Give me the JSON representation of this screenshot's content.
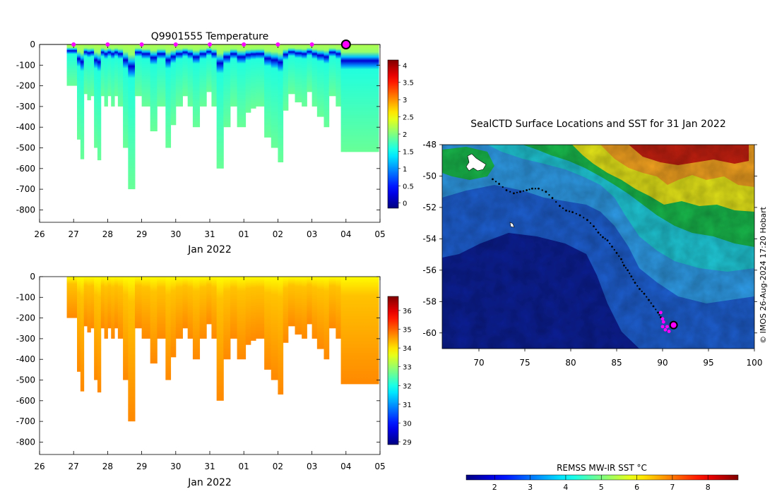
{
  "chart_data": [
    {
      "type": "heatmap",
      "title": "Q9901555  Temperature",
      "xlabel": "Jan 2022",
      "ylabel": "",
      "x_tick_labels": [
        "26",
        "27",
        "28",
        "29",
        "30",
        "31",
        "01",
        "02",
        "03",
        "04",
        "05"
      ],
      "x_range_days": [
        26,
        36
      ],
      "ylim": [
        -860,
        0
      ],
      "y_ticks": [
        0,
        -100,
        -200,
        -300,
        -400,
        -500,
        -600,
        -700,
        -800
      ],
      "colorbar": {
        "min": -0.15,
        "max": 4.15,
        "ticks": [
          0,
          0.5,
          1,
          1.5,
          2,
          2.5,
          3,
          3.5,
          4
        ]
      },
      "surfacing_markers_days": [
        27.0,
        28.0,
        29.0,
        30.0,
        31.0,
        32.0,
        33.0,
        34.0,
        35.0
      ],
      "latest_marker_day": 35.0,
      "profile_start_days": [
        26.8,
        27.1,
        27.2,
        27.3,
        27.4,
        27.5,
        27.6,
        27.7,
        27.8,
        27.9,
        28.0,
        28.1,
        28.2,
        28.3,
        28.45,
        28.6,
        28.8,
        29.0,
        29.25,
        29.45,
        29.7,
        29.85,
        30.0,
        30.2,
        30.35,
        30.5,
        30.7,
        30.9,
        31.05,
        31.2,
        31.4,
        31.6,
        31.8,
        32.05,
        32.2,
        32.35,
        32.6,
        32.8,
        33.0,
        33.15,
        33.3,
        33.5,
        33.7,
        33.85,
        34.0,
        34.15,
        34.35,
        34.5,
        34.7,
        34.85,
        35.0
      ],
      "profile_max_depth_m": [
        200,
        460,
        555,
        240,
        270,
        250,
        500,
        560,
        250,
        300,
        250,
        300,
        250,
        300,
        500,
        700,
        250,
        300,
        420,
        300,
        500,
        390,
        300,
        250,
        300,
        400,
        300,
        230,
        300,
        600,
        400,
        300,
        400,
        330,
        310,
        300,
        450,
        500,
        570,
        320,
        240,
        280,
        300,
        230,
        300,
        350,
        400,
        250,
        300,
        520,
        520
      ],
      "depth_limit_m": 200,
      "surface_temp_c": 2.2,
      "min_temp_c": 0.2,
      "min_temp_depth_m": 130,
      "deep_temp_c": 1.9
    },
    {
      "type": "heatmap",
      "title": "",
      "xlabel": "Jan 2022",
      "ylabel": "",
      "x_tick_labels": [
        "26",
        "27",
        "28",
        "29",
        "30",
        "31",
        "01",
        "02",
        "03",
        "04",
        "05"
      ],
      "x_range_days": [
        26,
        36
      ],
      "ylim": [
        -860,
        0
      ],
      "y_ticks": [
        0,
        -100,
        -200,
        -300,
        -400,
        -500,
        -600,
        -700,
        -800
      ],
      "colorbar": {
        "min": 28.85,
        "max": 36.75,
        "ticks": [
          29,
          30,
          31,
          32,
          33,
          34,
          35,
          36
        ]
      },
      "surface_salinity": 33.8,
      "deep_salinity": 34.7
    },
    {
      "type": "map",
      "title": "SealCTD Surface Locations and SST for 31 Jan 2022",
      "x_range_lon": [
        66,
        100
      ],
      "y_range_lat": [
        -61,
        -48
      ],
      "x_ticks": [
        70,
        75,
        80,
        85,
        90,
        95,
        100
      ],
      "y_ticks": [
        -48,
        -50,
        -52,
        -54,
        -56,
        -58,
        -60
      ],
      "track_lon": [
        71.5,
        72.2,
        73.0,
        73.8,
        74.5,
        75.2,
        75.8,
        76.5,
        77.3,
        78.0,
        78.8,
        79.5,
        80.2,
        81.0,
        81.8,
        82.5,
        83.0,
        83.5,
        84.0,
        84.5,
        85.0,
        85.5,
        85.8,
        86.2,
        86.6,
        87.0,
        87.5,
        88.0,
        88.5,
        89.0,
        89.5,
        89.8
      ],
      "track_lat": [
        -50.2,
        -50.5,
        -50.9,
        -51.1,
        -51.0,
        -50.9,
        -50.8,
        -50.8,
        -51.0,
        -51.4,
        -51.9,
        -52.2,
        -52.3,
        -52.5,
        -52.8,
        -53.2,
        -53.6,
        -53.9,
        -54.1,
        -54.5,
        -54.9,
        -55.3,
        -55.7,
        -56.0,
        -56.4,
        -56.8,
        -57.2,
        -57.5,
        -57.9,
        -58.3,
        -58.7,
        -59.0
      ],
      "recent_lon": [
        89.8,
        90.0,
        90.1,
        90.0,
        90.3,
        90.5,
        90.7,
        90.9
      ],
      "recent_lat": [
        -58.7,
        -59.1,
        -59.3,
        -59.6,
        -59.8,
        -59.6,
        -59.9,
        -59.5
      ],
      "latest_position": {
        "lon": 91.2,
        "lat": -59.5
      },
      "colorbar_label": "REMSS MW-IR SST °C",
      "colorbar": {
        "min": 1.2,
        "max": 8.85,
        "ticks": [
          2,
          3,
          4,
          5,
          6,
          7,
          8
        ]
      },
      "credit": "© IMOS 26-Aug-2024 17:20 Hobart"
    }
  ]
}
